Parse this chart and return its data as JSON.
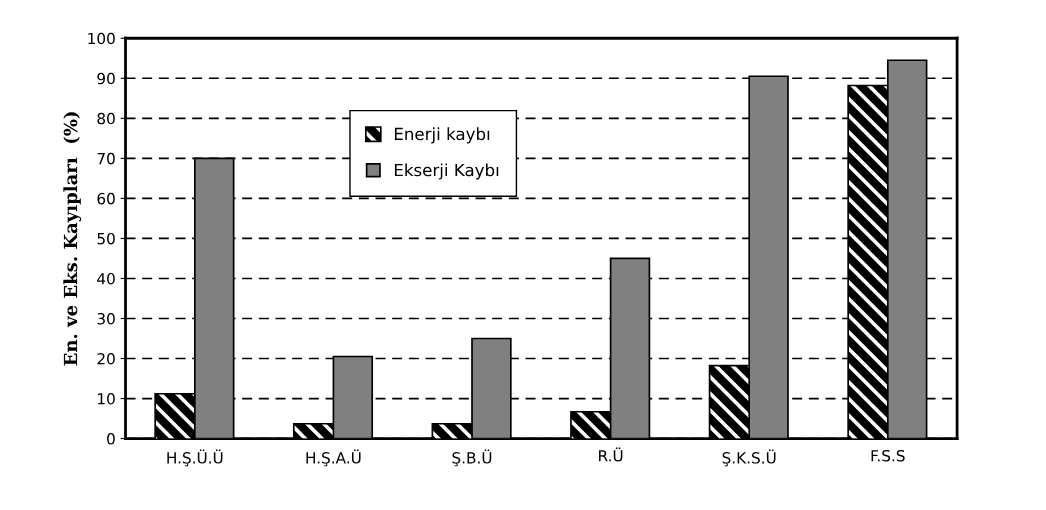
{
  "chart_data": {
    "type": "bar",
    "ylabel": "En. ve Eks. Kayıpları  (%)",
    "categories": [
      "H.Ş.Ü.Ü",
      "H.Ş.A.Ü",
      "Ş.B.Ü",
      "R.Ü",
      "Ş.K.S.Ü",
      "F.S.S"
    ],
    "series": [
      {
        "name": "Enerji kaybı",
        "color": "#000000",
        "values": [
          11,
          3.5,
          3.5,
          6.5,
          18,
          88
        ]
      },
      {
        "name": "Ekserji Kaybı",
        "color": "#808080",
        "values": [
          70,
          20.5,
          25,
          45,
          90.5,
          94.5
        ]
      }
    ],
    "ylim": [
      0,
      100
    ],
    "yticks": [
      0,
      10,
      20,
      30,
      40,
      50,
      60,
      70,
      80,
      90,
      100
    ],
    "grid": "y",
    "legend": "top"
  }
}
